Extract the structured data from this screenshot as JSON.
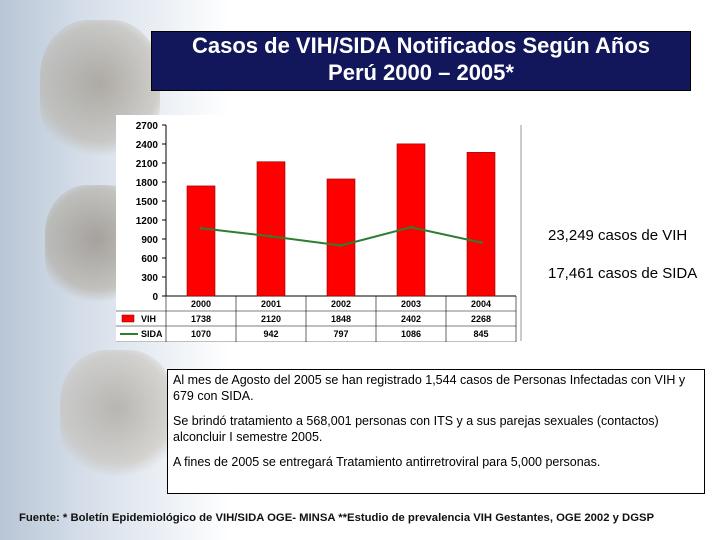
{
  "title": {
    "line1": "Casos de  VIH/SIDA Notificados Según Años",
    "line2": "Perú 2000 – 2005*"
  },
  "chart_data": {
    "type": "bar",
    "categories": [
      "2000",
      "2001",
      "2002",
      "2003",
      "2004"
    ],
    "series": [
      {
        "name": "VIH",
        "type": "bar",
        "values": [
          1738,
          2120,
          1848,
          2402,
          2268
        ],
        "color": "#ff0000"
      },
      {
        "name": "SIDA",
        "type": "line",
        "values": [
          1070,
          942,
          797,
          1086,
          845
        ],
        "color": "#2e7d32"
      }
    ],
    "yticks": [
      "2700",
      "2400",
      "2100",
      "1800",
      "1500",
      "1200",
      "900",
      "600",
      "300",
      "0"
    ],
    "ylim": [
      0,
      2700
    ],
    "grid": false,
    "legend": "data-table",
    "table_rows": [
      {
        "label": "VIH",
        "values": [
          "1738",
          "2120",
          "1848",
          "2402",
          "2268"
        ]
      },
      {
        "label": "SIDA",
        "values": [
          "1070",
          "942",
          "797",
          "1086",
          "845"
        ]
      }
    ]
  },
  "notes": {
    "vih": "23,249 casos de VIH",
    "sida": "17,461 casos de SIDA"
  },
  "info": {
    "p1": "Al mes de Agosto del 2005 se han registrado 1,544 casos de Personas Infectadas con VIH y 679 con SIDA.",
    "p2": "Se brindó tratamiento a 568,001 personas con ITS y a sus parejas sexuales (contactos) alconcluir I semestre 2005.",
    "p3": "A fines de 2005 se entregará Tratamiento antirretroviral para 5,000 personas."
  },
  "footer": "Fuente: * Boletín Epidemiológico de VIH/SIDA OGE- MINSA **Estudio de prevalencia VIH Gestantes, OGE 2002 y DGSP"
}
